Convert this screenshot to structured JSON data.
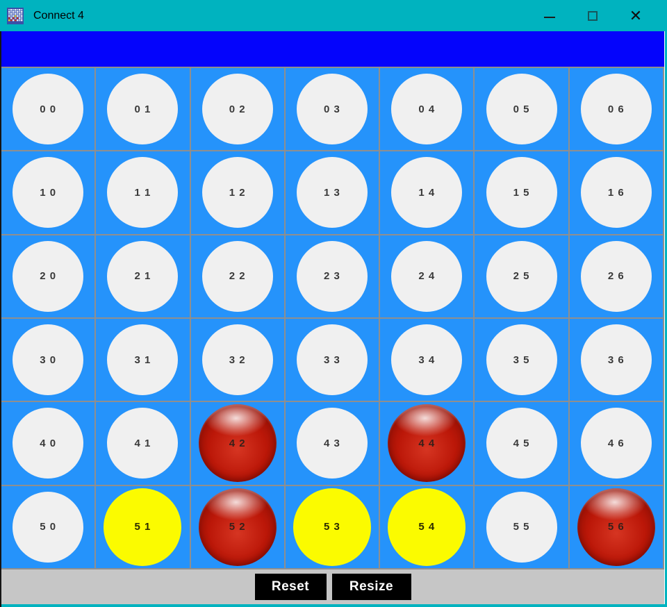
{
  "window": {
    "title": "Connect 4",
    "controls": {
      "minimize": "minimize",
      "maximize": "maximize",
      "close": "✕"
    },
    "colors": {
      "titlebar": "#00b3bf",
      "banner": "#0404fc",
      "cell_background": "#2593fb",
      "grid_line": "#8f8f8f",
      "empty_piece": "#f0f0f0",
      "red_piece": "#bb1708",
      "yellow_piece": "#fbfb00",
      "footer": "#c6c6c6",
      "button_background": "#000000",
      "button_text": "#ffffff"
    }
  },
  "board": {
    "rows": 6,
    "cols": 7,
    "cells": [
      {
        "label": "0 0",
        "state": "empty"
      },
      {
        "label": "0 1",
        "state": "empty"
      },
      {
        "label": "0 2",
        "state": "empty"
      },
      {
        "label": "0 3",
        "state": "empty"
      },
      {
        "label": "0 4",
        "state": "empty"
      },
      {
        "label": "0 5",
        "state": "empty"
      },
      {
        "label": "0 6",
        "state": "empty"
      },
      {
        "label": "1 0",
        "state": "empty"
      },
      {
        "label": "1 1",
        "state": "empty"
      },
      {
        "label": "1 2",
        "state": "empty"
      },
      {
        "label": "1 3",
        "state": "empty"
      },
      {
        "label": "1 4",
        "state": "empty"
      },
      {
        "label": "1 5",
        "state": "empty"
      },
      {
        "label": "1 6",
        "state": "empty"
      },
      {
        "label": "2 0",
        "state": "empty"
      },
      {
        "label": "2 1",
        "state": "empty"
      },
      {
        "label": "2 2",
        "state": "empty"
      },
      {
        "label": "2 3",
        "state": "empty"
      },
      {
        "label": "2 4",
        "state": "empty"
      },
      {
        "label": "2 5",
        "state": "empty"
      },
      {
        "label": "2 6",
        "state": "empty"
      },
      {
        "label": "3 0",
        "state": "empty"
      },
      {
        "label": "3 1",
        "state": "empty"
      },
      {
        "label": "3 2",
        "state": "empty"
      },
      {
        "label": "3 3",
        "state": "empty"
      },
      {
        "label": "3 4",
        "state": "empty"
      },
      {
        "label": "3 5",
        "state": "empty"
      },
      {
        "label": "3 6",
        "state": "empty"
      },
      {
        "label": "4 0",
        "state": "empty"
      },
      {
        "label": "4 1",
        "state": "empty"
      },
      {
        "label": "4 2",
        "state": "red"
      },
      {
        "label": "4 3",
        "state": "empty"
      },
      {
        "label": "4 4",
        "state": "red"
      },
      {
        "label": "4 5",
        "state": "empty"
      },
      {
        "label": "4 6",
        "state": "empty"
      },
      {
        "label": "5 0",
        "state": "empty"
      },
      {
        "label": "5 1",
        "state": "yellow"
      },
      {
        "label": "5 2",
        "state": "red"
      },
      {
        "label": "5 3",
        "state": "yellow"
      },
      {
        "label": "5 4",
        "state": "yellow"
      },
      {
        "label": "5 5",
        "state": "empty"
      },
      {
        "label": "5 6",
        "state": "red"
      }
    ]
  },
  "footer": {
    "reset_label": "Reset",
    "resize_label": "Resize"
  }
}
